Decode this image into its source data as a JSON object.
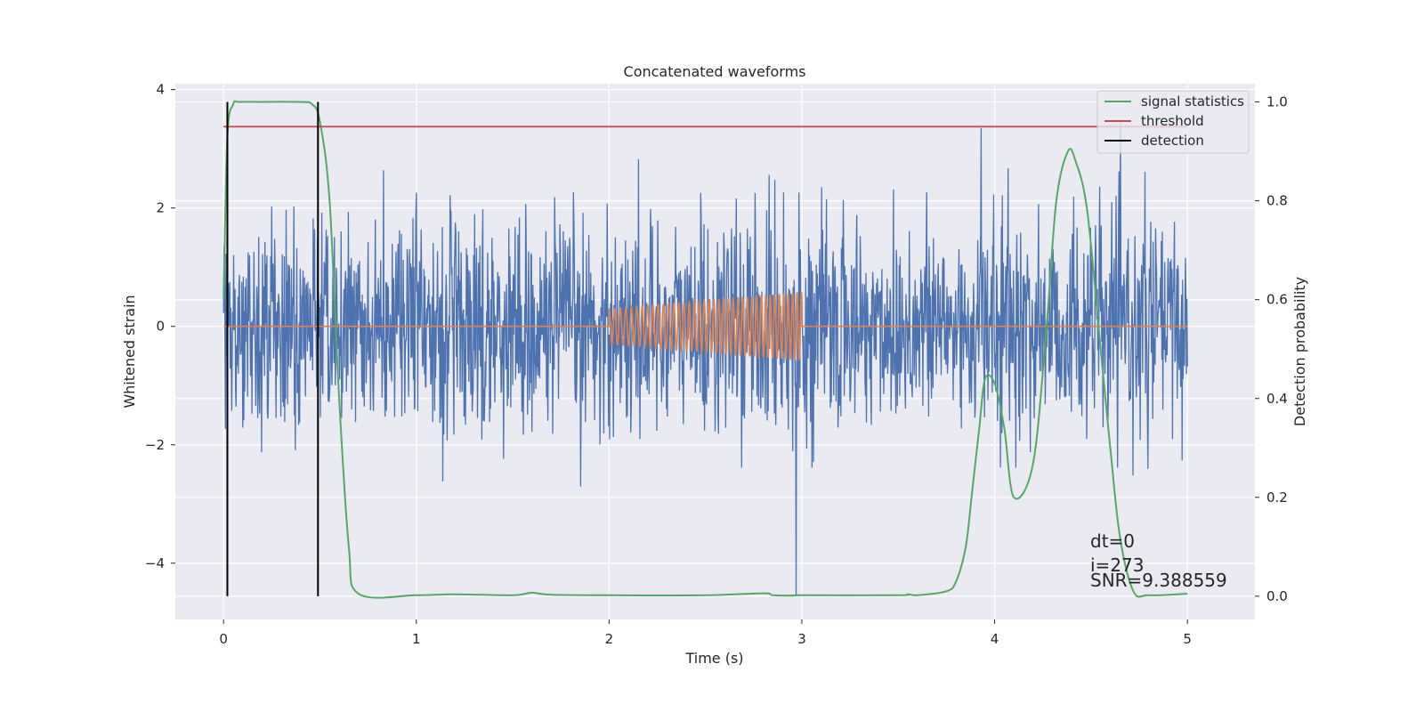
{
  "chart_data": {
    "type": "line",
    "title": "Concatenated waveforms",
    "xlabel": "Time (s)",
    "ylabel": "Whitened strain",
    "y2label": "Detection probability",
    "xlim": [
      -0.25,
      5.35
    ],
    "ylim": [
      -4.95,
      4.1
    ],
    "y2lim": [
      -0.047,
      1.037
    ],
    "xticks": [
      0,
      1,
      2,
      3,
      4,
      5
    ],
    "xtick_labels": [
      "0",
      "1",
      "2",
      "3",
      "4",
      "5"
    ],
    "yticks": [
      -4,
      -2,
      0,
      2,
      4
    ],
    "ytick_labels": [
      "−4",
      "−2",
      "0",
      "2",
      "4"
    ],
    "y2ticks": [
      0.0,
      0.2,
      0.4,
      0.6,
      0.8,
      1.0
    ],
    "y2tick_labels": [
      "0.0",
      "0.2",
      "0.4",
      "0.6",
      "0.8",
      "1.0"
    ],
    "grid": true,
    "legend_position": "top-right",
    "colors": {
      "strain": "#4c72b0",
      "injected": "#dd8452",
      "signal_statistics": "#55a868",
      "threshold": "#c44e52",
      "detection": "#000000",
      "background": "#eaeaf2"
    },
    "series": [
      {
        "name": "signal statistics",
        "axis": "right",
        "x": [
          0.0,
          0.02,
          0.05,
          0.08,
          0.2,
          0.4,
          0.46,
          0.5,
          0.55,
          0.6,
          0.65,
          0.7,
          1.0,
          1.2,
          1.5,
          1.6,
          1.7,
          2.0,
          2.5,
          2.8,
          2.85,
          2.95,
          3.0,
          3.5,
          3.55,
          3.6,
          3.75,
          3.8,
          3.85,
          3.88,
          3.92,
          3.95,
          4.0,
          4.05,
          4.1,
          4.2,
          4.27,
          4.32,
          4.38,
          4.42,
          4.48,
          4.55,
          4.6,
          4.65,
          4.72,
          4.8,
          5.0
        ],
        "values": [
          0.6,
          0.93,
          0.995,
          1.0,
          1.0,
          1.0,
          0.995,
          0.96,
          0.8,
          0.4,
          0.1,
          0.005,
          0.002,
          0.004,
          0.002,
          0.007,
          0.003,
          0.002,
          0.002,
          0.006,
          0.002,
          0.001,
          0.002,
          0.002,
          0.004,
          0.002,
          0.01,
          0.03,
          0.1,
          0.2,
          0.34,
          0.44,
          0.43,
          0.34,
          0.2,
          0.27,
          0.55,
          0.8,
          0.9,
          0.88,
          0.78,
          0.5,
          0.3,
          0.12,
          0.01,
          0.002,
          0.005
        ]
      },
      {
        "name": "threshold",
        "axis": "right",
        "x": [
          0.0,
          5.0
        ],
        "values": [
          0.95,
          0.95
        ]
      },
      {
        "name": "detection",
        "axis": "right",
        "x": [
          0.02,
          0.02,
          0.49,
          0.49
        ],
        "values": [
          0.0,
          1.0,
          0.0,
          1.0
        ]
      }
    ],
    "whitened_strain": {
      "x_range": [
        0.0,
        5.0
      ],
      "n_samples": 2000,
      "noise_std": 0.9,
      "range": [
        -3.2,
        3.45
      ],
      "spikes": [
        {
          "x": 2.97,
          "y": -4.55
        },
        {
          "x": 3.93,
          "y": 3.35
        }
      ]
    },
    "injected_waveform": {
      "x_range": [
        0.0,
        5.0
      ],
      "chirp_start": 2.0,
      "chirp_end": 3.0,
      "amplitude_start": 0.3,
      "amplitude_end": 0.58,
      "cycles": 34
    },
    "annotations": [
      "dt=0",
      "i=273",
      "SNR=9.388559"
    ]
  }
}
